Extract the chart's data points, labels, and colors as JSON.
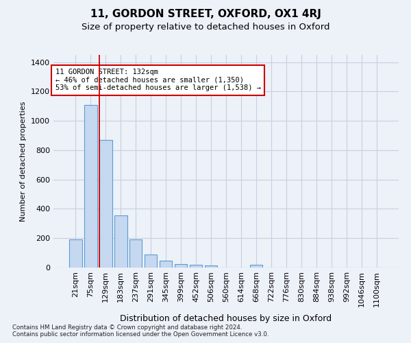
{
  "title": "11, GORDON STREET, OXFORD, OX1 4RJ",
  "subtitle": "Size of property relative to detached houses in Oxford",
  "xlabel": "Distribution of detached houses by size in Oxford",
  "ylabel": "Number of detached properties",
  "footnote1": "Contains HM Land Registry data © Crown copyright and database right 2024.",
  "footnote2": "Contains public sector information licensed under the Open Government Licence v3.0.",
  "bar_labels": [
    "21sqm",
    "75sqm",
    "129sqm",
    "183sqm",
    "237sqm",
    "291sqm",
    "345sqm",
    "399sqm",
    "452sqm",
    "506sqm",
    "560sqm",
    "614sqm",
    "668sqm",
    "722sqm",
    "776sqm",
    "830sqm",
    "884sqm",
    "938sqm",
    "992sqm",
    "1046sqm",
    "1100sqm"
  ],
  "bar_values": [
    190,
    1110,
    870,
    355,
    190,
    90,
    47,
    23,
    18,
    15,
    0,
    0,
    20,
    0,
    0,
    0,
    0,
    0,
    0,
    0,
    0
  ],
  "bar_color": "#c5d8f0",
  "bar_edge_color": "#5b9bd5",
  "grid_color": "#c8d0de",
  "background_color": "#edf1f8",
  "property_line_color": "#cc0000",
  "property_line_bar_index": 2,
  "annotation_text": "11 GORDON STREET: 132sqm\n← 46% of detached houses are smaller (1,350)\n53% of semi-detached houses are larger (1,538) →",
  "annotation_box_color": "#ffffff",
  "annotation_box_edge": "#cc0000",
  "ylim": [
    0,
    1450
  ],
  "yticks": [
    0,
    200,
    400,
    600,
    800,
    1000,
    1200,
    1400
  ]
}
